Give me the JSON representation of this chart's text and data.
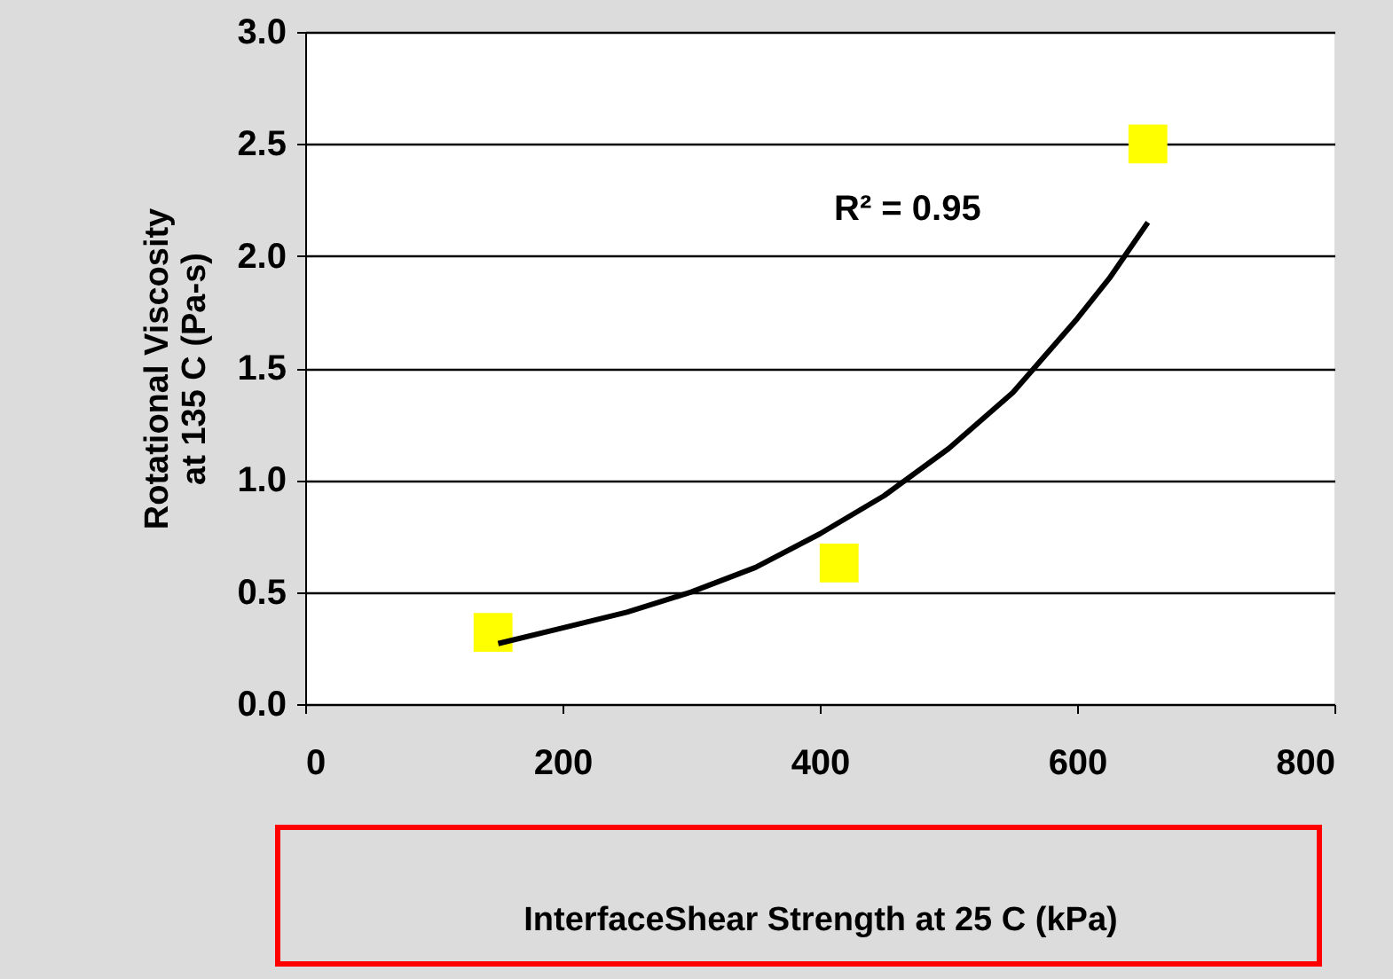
{
  "chart_data": {
    "type": "scatter",
    "xlabel": "InterfaceShear Strength at 25 C (kPa)",
    "ylabel": "Rotational Viscosity\nat 135 C (Pa-s)",
    "xlim": [
      0,
      800
    ],
    "xticks": [
      0,
      200,
      400,
      600,
      800
    ],
    "ylim": [
      0,
      3
    ],
    "yticks": [
      {
        "value": 0,
        "label": "0.0"
      },
      {
        "value": 0.5,
        "label": "0.5"
      },
      {
        "value": 1,
        "label": "1.0"
      },
      {
        "value": 1.5,
        "label": "1.5"
      },
      {
        "value": 2,
        "label": "2.0"
      },
      {
        "value": 2.5,
        "label": "2.5"
      },
      {
        "value": 3,
        "label": "3.0"
      }
    ],
    "grid": "y",
    "annotations": [
      "R² = 0.95"
    ],
    "series": [
      {
        "color": "#ffff00",
        "marker": "square",
        "x": [
          146,
          415,
          655
        ],
        "values": [
          0.32,
          0.63,
          2.5
        ]
      },
      {
        "type": "line",
        "color": "#000000",
        "marker": "none",
        "x": [
          150,
          200,
          250,
          300,
          350,
          400,
          450,
          500,
          550,
          600,
          625,
          655
        ],
        "values": [
          0.27,
          0.34,
          0.41,
          0.5,
          0.61,
          0.76,
          0.93,
          1.14,
          1.39,
          1.72,
          1.9,
          2.15
        ]
      }
    ]
  }
}
